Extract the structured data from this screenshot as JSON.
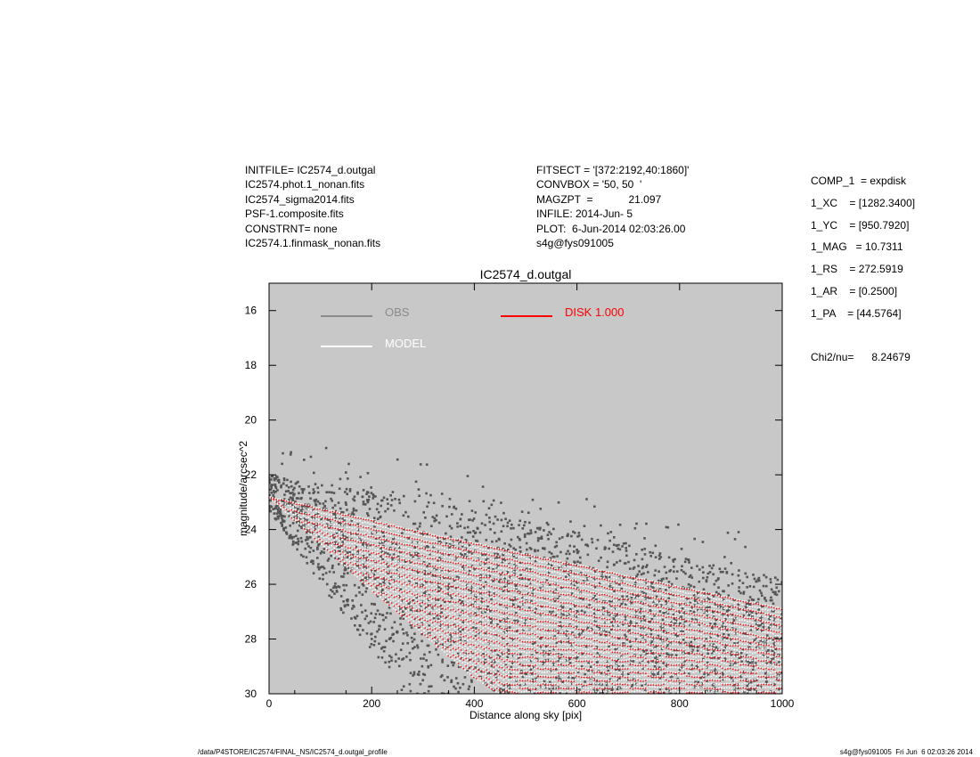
{
  "header_left": {
    "lines": [
      "INITFILE= IC2574_d.outgal",
      "IC2574.phot.1_nonan.fits",
      "IC2574_sigma2014.fits",
      "PSF-1.composite.fits",
      "CONSTRNT= none",
      "IC2574.1.finmask_nonan.fits"
    ]
  },
  "header_mid": {
    "lines": [
      "FITSECT = '[372:2192,40:1860]'",
      "CONVBOX = '50, 50  '",
      "MAGZPT  =            21.097",
      "INFILE: 2014-Jun- 5",
      "PLOT:  6-Jun-2014 02:03:26.00",
      "s4g@fys091005"
    ]
  },
  "header_right": {
    "lines": [
      "COMP_1  = expdisk",
      "1_XC    = [1282.3400]",
      "1_YC    = [950.7920]",
      "1_MAG   = 10.7311",
      "1_RS    = 272.5919",
      "1_AR    = [0.2500]",
      "1_PA    = [44.5764]",
      "",
      "Chi2/nu=      8.24679"
    ]
  },
  "footer": {
    "left": "/data/P4STORE/IC2574/FINAL_NS/IC2574_d.outgal_profile",
    "right": "s4g@fys091005  Fri Jun  6 02:03:26 2014"
  },
  "colors": {
    "plot_background": "#c8c8c8",
    "obs": "#555555",
    "model": "#ffffff",
    "disk": "#ff0000",
    "obs_legend_line": "#8a8a8a"
  },
  "chart_data": {
    "type": "scatter",
    "title": "IC2574_d.outgal",
    "xlabel": "Distance along sky [pix]",
    "ylabel": "magnitude/arcsec^2",
    "xlim": [
      0,
      1000
    ],
    "ylim": [
      30,
      15
    ],
    "y_inverted": true,
    "xticks": [
      0,
      200,
      400,
      600,
      800,
      1000
    ],
    "yticks": [
      16,
      18,
      20,
      22,
      24,
      26,
      28,
      30
    ],
    "legend": [
      {
        "label": "OBS",
        "color": "#8a8a8a"
      },
      {
        "label": "MODEL",
        "color": "#ffffff"
      },
      {
        "label": "DISK  1.000",
        "color": "#ff0000"
      }
    ],
    "series": [
      {
        "name": "OBS",
        "description_points": "scattered points between the model envelope lines",
        "upper_envelope": [
          [
            0,
            22.6
          ],
          [
            200,
            23.2
          ],
          [
            400,
            23.9
          ],
          [
            600,
            24.7
          ],
          [
            800,
            25.6
          ],
          [
            1000,
            26.4
          ]
        ],
        "lower_envelope": [
          [
            0,
            22.9
          ],
          [
            100,
            25.6
          ],
          [
            200,
            28.0
          ],
          [
            260,
            29.5
          ]
        ]
      },
      {
        "name": "MODEL",
        "upper_edge": [
          [
            0,
            22.8
          ],
          [
            300,
            24.1
          ],
          [
            600,
            25.3
          ],
          [
            1000,
            26.9
          ]
        ],
        "lower_edge": [
          [
            0,
            22.8
          ],
          [
            200,
            26.2
          ],
          [
            400,
            29.4
          ],
          [
            450,
            30.0
          ]
        ]
      },
      {
        "name": "DISK  1.000",
        "upper_edge": [
          [
            0,
            22.8
          ],
          [
            300,
            24.1
          ],
          [
            600,
            25.3
          ],
          [
            1000,
            26.9
          ]
        ],
        "lower_edge": [
          [
            0,
            22.8
          ],
          [
            200,
            26.2
          ],
          [
            400,
            29.4
          ],
          [
            450,
            30.0
          ]
        ]
      }
    ]
  }
}
